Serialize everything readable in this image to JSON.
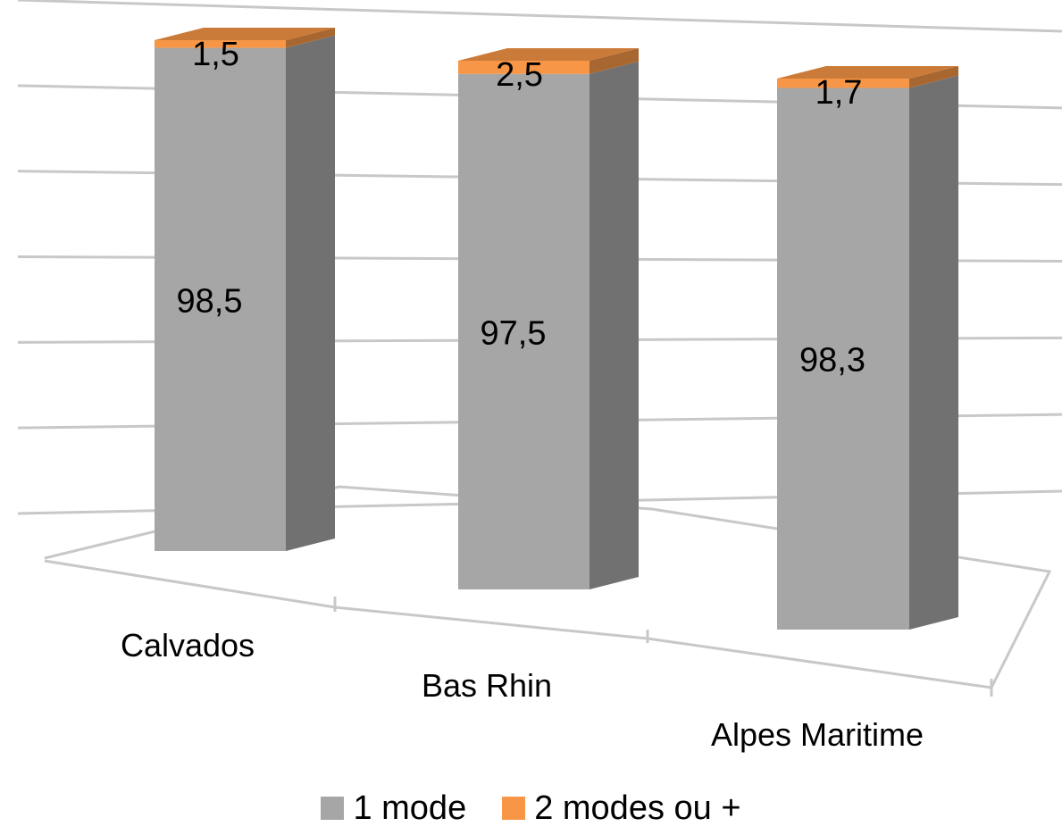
{
  "chart_data": {
    "type": "bar",
    "stacked": true,
    "three_d": true,
    "categories": [
      "Calvados",
      "Bas Rhin",
      "Alpes Maritime"
    ],
    "series": [
      {
        "name": "1 mode",
        "values": [
          98.5,
          97.5,
          98.3
        ],
        "labels": [
          "98,5",
          "97,5",
          "98,3"
        ],
        "color": "#a6a6a6"
      },
      {
        "name": "2 modes ou +",
        "values": [
          1.5,
          2.5,
          1.7
        ],
        "labels": [
          "1,5",
          "2,5",
          "1,7"
        ],
        "color": "#f79646"
      }
    ],
    "ylim": [
      0,
      100
    ],
    "grid": true,
    "legend_position": "bottom"
  }
}
